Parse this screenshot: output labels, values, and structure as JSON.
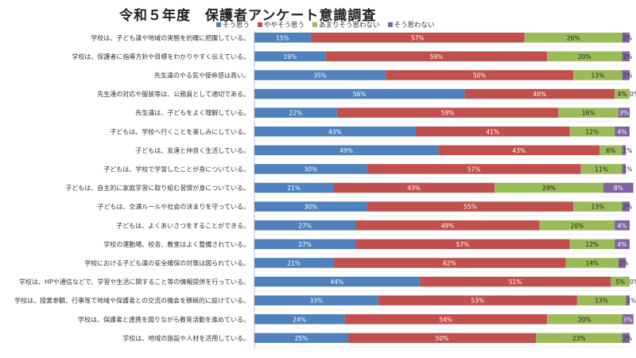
{
  "chart_data": {
    "type": "bar",
    "orientation": "horizontal",
    "stacked": true,
    "percent": true,
    "title": "令和５年度　保護者アンケート意識調査",
    "legend_position": "top",
    "xlim": [
      0,
      100
    ],
    "grid": false,
    "categories": [
      "学校は、子ども達や地域の実態を的確に把握している。",
      "学校は、保護者に指導方針や目標をわかりやすく伝えている。",
      "先生達のやる気や使命感は高い。",
      "先生達の対応や服装等は、公務員として適切である。",
      "先生達は、子どもをよく理解している。",
      "子どもは、学校へ行くことを楽しみにしている。",
      "子どもは、友達と仲良く生活している。",
      "子どもは、学校で学習したことが身についている。",
      "子どもは、自主的に家庭学習に取り組む習慣が身についている。",
      "子どもは、交通ルールや社会の決まりを守っている。",
      "子どもは、よくあいさつをすることができる。",
      "学校の運動場、校舎、教室はよく整備されている。",
      "学校における子ども達の安全確保の対策は図られている。",
      "学校は、HPや通信などで、学習や生活に関すること等の情報提供を行っている。",
      "学校は、授業参観、行事等で地域や保護者との交流の機会を積極的に設けている。",
      "学校は、保護者と連携を図りながら教育活動を進めている。",
      "学校は、地域の施設や人材を活用している。"
    ],
    "series": [
      {
        "name": "そう思う",
        "color": "#4f81bd",
        "values": [
          15,
          19,
          35,
          56,
          22,
          43,
          49,
          30,
          21,
          30,
          27,
          27,
          21,
          44,
          33,
          24,
          25
        ],
        "labels": [
          "15%",
          "19%",
          "35%",
          "56%",
          "22%",
          "43%",
          "49%",
          "30%",
          "21%",
          "30%",
          "27%",
          "27%",
          "21%",
          "44%",
          "33%",
          "24%",
          "25%"
        ]
      },
      {
        "name": "ややそう思う",
        "color": "#c0504d",
        "values": [
          57,
          59,
          50,
          40,
          59,
          41,
          43,
          57,
          43,
          55,
          49,
          57,
          62,
          51,
          53,
          54,
          50
        ],
        "labels": [
          "57%",
          "59%",
          "50%",
          "40%",
          "59%",
          "41%",
          "43%",
          "57%",
          "43%",
          "55%",
          "49%",
          "57%",
          "62%",
          "51%",
          "53%",
          "54%",
          "50%"
        ]
      },
      {
        "name": "あまりそう思わない",
        "color": "#9bbb59",
        "values": [
          26,
          20,
          13,
          4,
          16,
          12,
          6,
          11,
          29,
          13,
          20,
          12,
          14,
          5,
          13,
          20,
          23
        ],
        "labels": [
          "26%",
          "20%",
          "13%",
          "4%",
          "16%",
          "12%",
          "6%",
          "11%",
          "29%",
          "13%",
          "20%",
          "12%",
          "14%",
          "5%",
          "13%",
          "20%",
          "23%"
        ]
      },
      {
        "name": "そう思わない",
        "color": "#8064a2",
        "values": [
          2,
          2,
          2,
          0,
          3,
          4,
          1,
          1,
          8,
          2,
          4,
          4,
          2,
          0,
          1,
          3,
          2
        ],
        "labels": [
          "2%",
          "2%",
          "2%",
          "0%",
          "3%",
          "4%",
          "1%",
          "1%",
          "8%",
          "2%",
          "4%",
          "4%",
          "2%",
          "0%",
          "1%",
          "3%",
          "2%"
        ]
      }
    ]
  }
}
